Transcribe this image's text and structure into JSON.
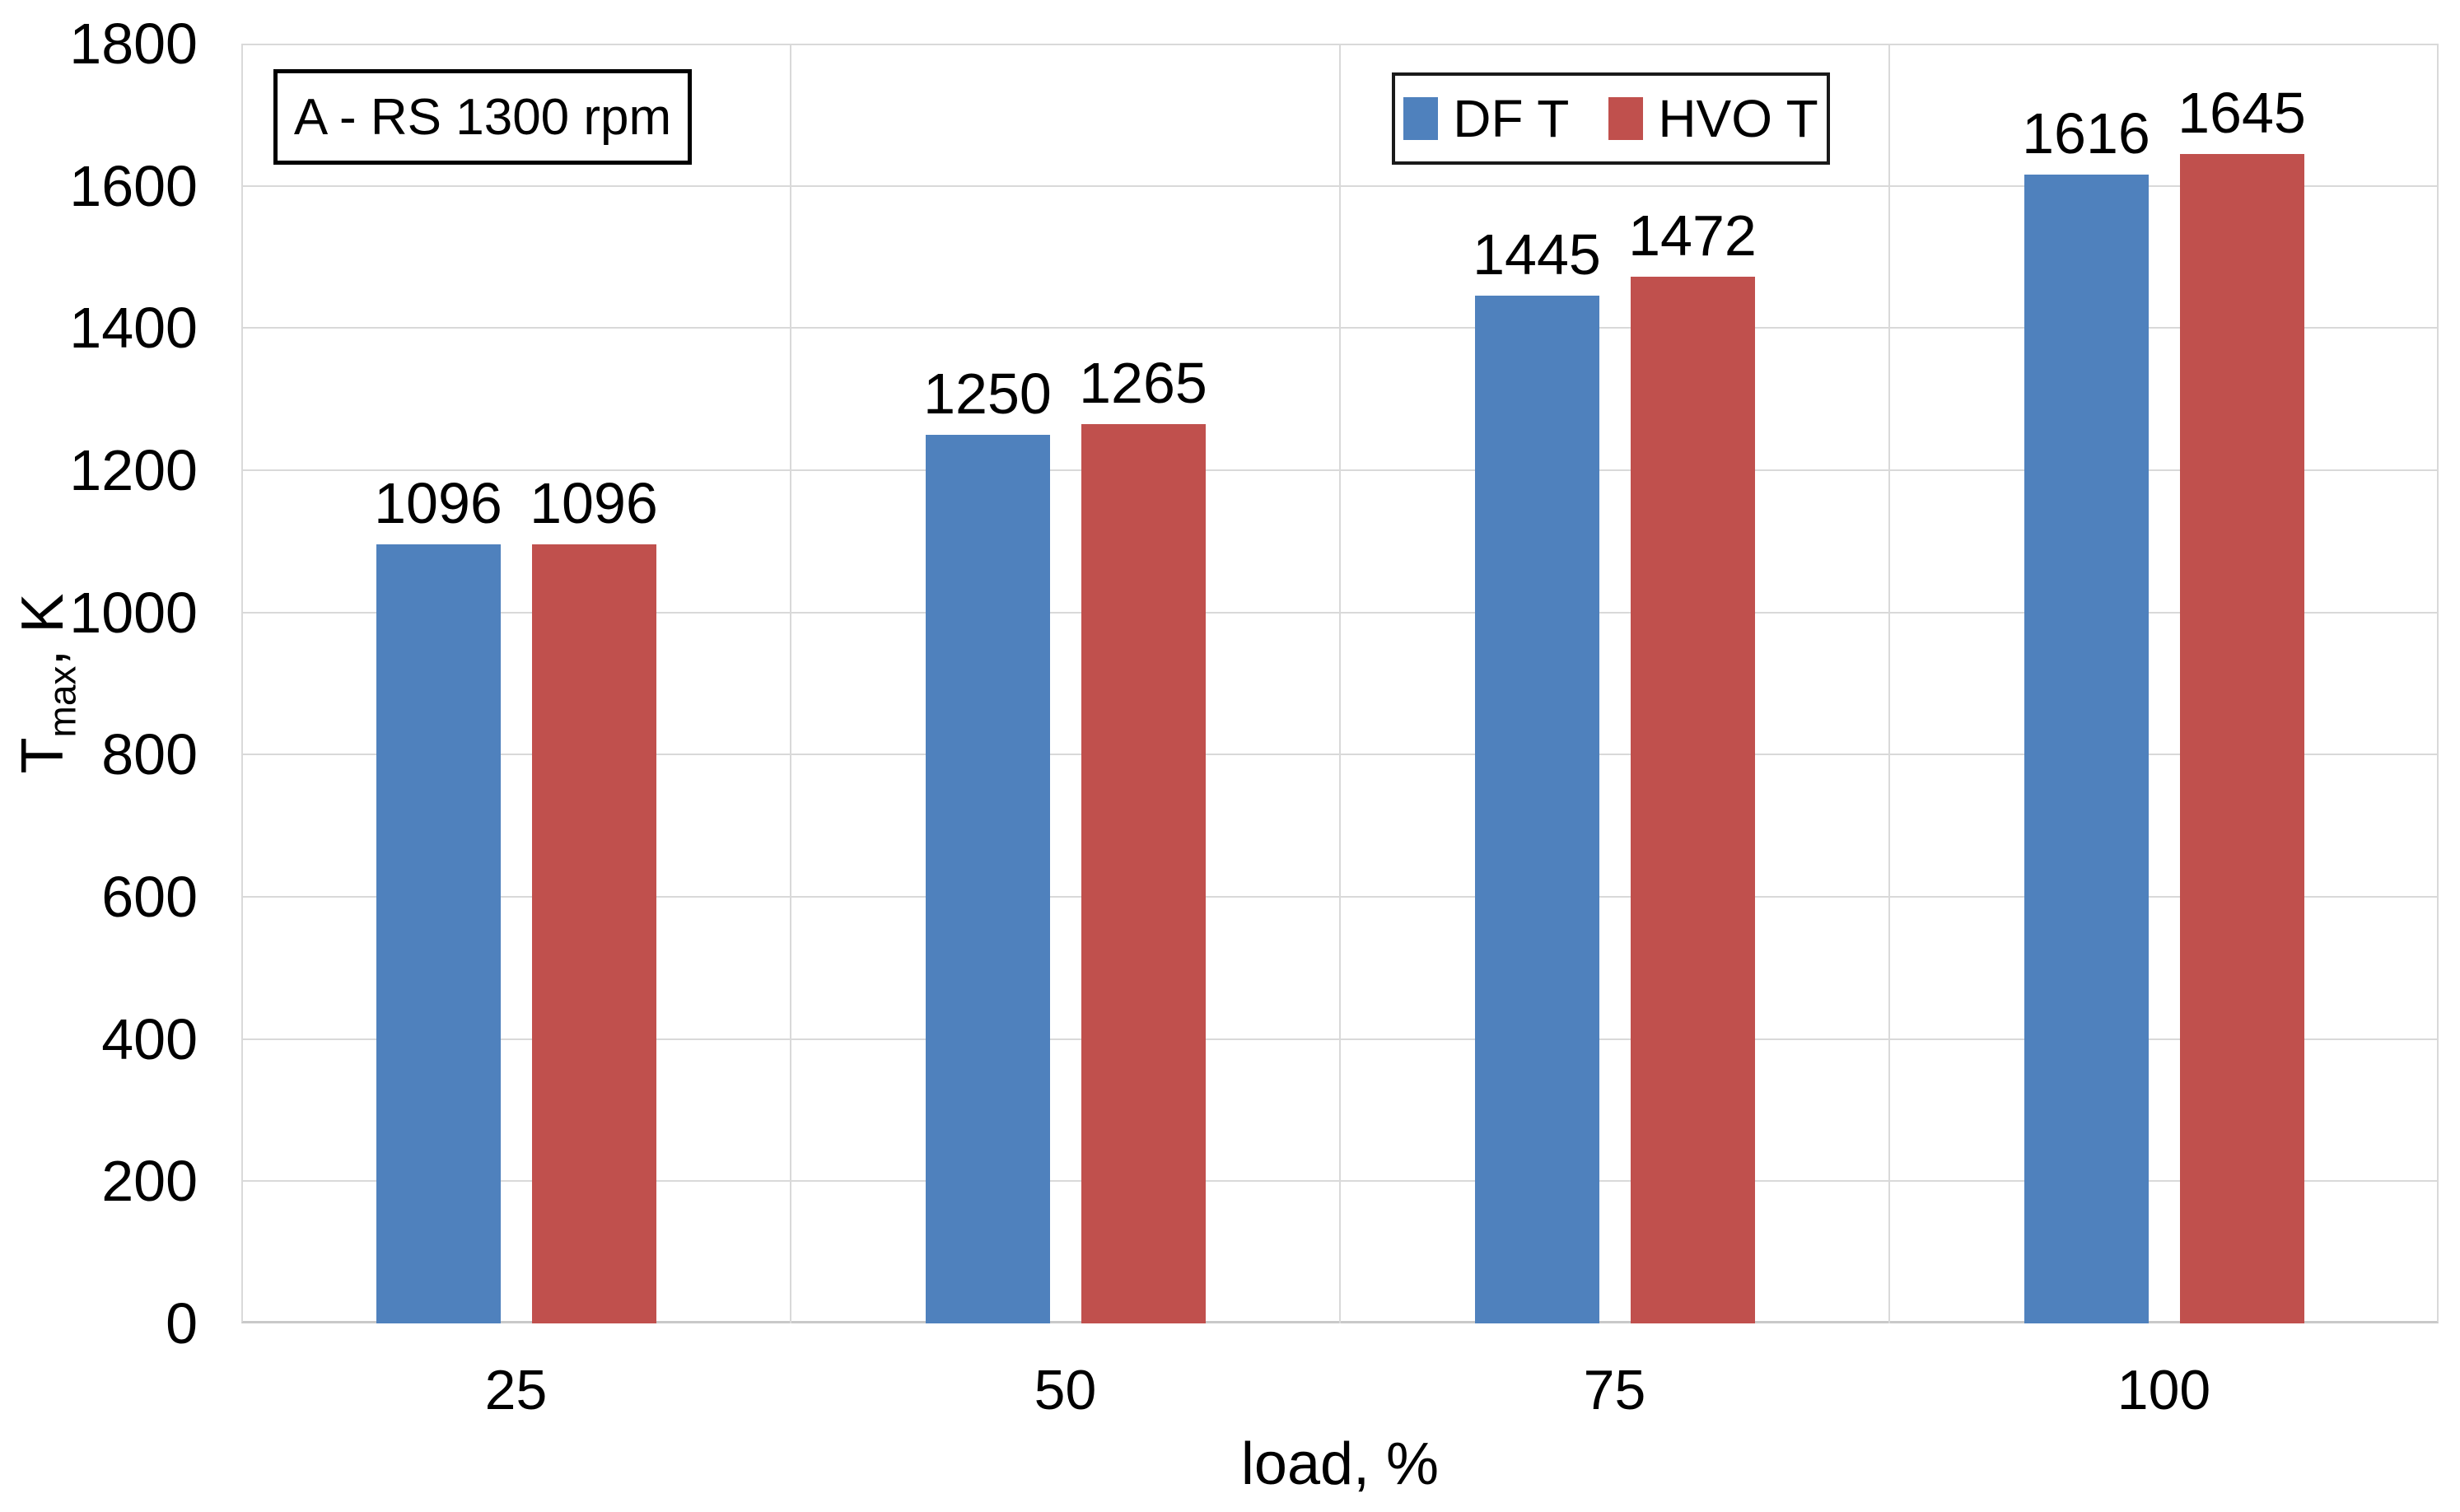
{
  "chart_data": {
    "type": "bar",
    "annotation": "A - RS 1300 rpm",
    "categories": [
      "25",
      "50",
      "75",
      "100"
    ],
    "series": [
      {
        "name": "DF T",
        "color": "#4F81BD",
        "values": [
          1096,
          1250,
          1445,
          1616
        ]
      },
      {
        "name": "HVO T",
        "color": "#C0504D",
        "values": [
          1096,
          1265,
          1472,
          1645
        ]
      }
    ],
    "data_labels": [
      [
        "1096",
        "1250",
        "1445",
        "1616"
      ],
      [
        "1096",
        "1265",
        "1472",
        "1645"
      ]
    ],
    "xlabel": "load, %",
    "ylabel": {
      "prefix": "T",
      "subscript": "max",
      "suffix": ", K"
    },
    "ylim": [
      0,
      1800
    ],
    "yticks": [
      0,
      200,
      400,
      600,
      800,
      1000,
      1200,
      1400,
      1600,
      1800
    ],
    "grid": "horizontal and vertical category separators, light gray",
    "legend_position": "top-center-right, boxed"
  },
  "colors": {
    "bar_blue": "#4F81BD",
    "bar_red": "#C0504D",
    "gridline": "#D9D9D9",
    "text": "#000000",
    "background": "#FFFFFF",
    "box_border": "#000000"
  }
}
